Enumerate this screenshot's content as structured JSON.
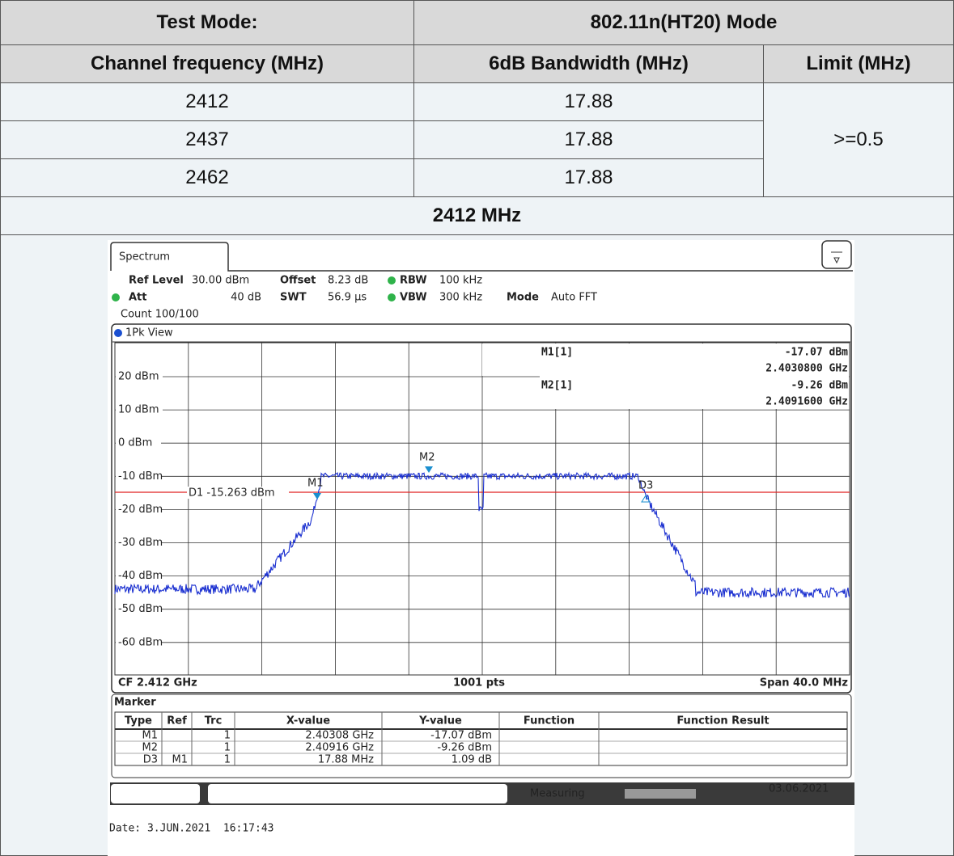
{
  "table": {
    "test_mode_label": "Test Mode:",
    "test_mode": "802.11n(HT20) Mode",
    "columns": [
      "Channel frequency (MHz)",
      "6dB Bandwidth (MHz)",
      "Limit (MHz)"
    ],
    "rows": [
      [
        "2412",
        "17.88"
      ],
      [
        "2437",
        "17.88"
      ],
      [
        "2462",
        "17.88"
      ]
    ],
    "limit": ">=0.5",
    "section": "2412 MHz"
  },
  "screenshot": {
    "tab": "Spectrum",
    "settings": {
      "ref_level_label": "Ref Level",
      "ref_level": "30.00 dBm",
      "offset_label": "Offset",
      "offset": "8.23 dB",
      "rbw_label": "RBW",
      "rbw": "100 kHz",
      "att_label": "Att",
      "att": "40 dB",
      "swt_label": "SWT",
      "swt": "56.9 µs",
      "vbw_label": "VBW",
      "vbw": "300 kHz",
      "mode_label": "Mode",
      "mode": "Auto FFT",
      "count": "Count 100/100"
    },
    "view": "1Pk View",
    "y_labels": [
      "20 dBm",
      "10 dBm",
      "0 dBm",
      "-10 dBm",
      "-20 dBm",
      "-30 dBm",
      "-40 dBm",
      "-50 dBm",
      "-60 dBm"
    ],
    "marker_info": [
      [
        "M1[1]",
        "-17.07 dBm",
        "2.4030800 GHz"
      ],
      [
        "M2[1]",
        "-9.26 dBm",
        "2.4091600 GHz"
      ]
    ],
    "display_line": "D1 -15.263 dBm",
    "marker_labels": [
      "M1",
      "M2",
      "D3"
    ],
    "footer": [
      "CF 2.412 GHz",
      "1001 pts",
      "Span 40.0 MHz"
    ],
    "marker_table": {
      "title": "Marker",
      "columns": [
        "Type",
        "Ref",
        "Trc",
        "X-value",
        "Y-value",
        "Function",
        "Function Result"
      ],
      "rows": [
        {
          "type": "M1",
          "trc": "1",
          "x": "2.40308 GHz",
          "y": "-17.07 dBm"
        },
        {
          "type": "M2",
          "trc": "1",
          "x": "2.40916 GHz",
          "y": "-9.26 dBm"
        },
        {
          "type": "D3",
          "ref": "M1",
          "trc": "1",
          "x": "17.88 MHz",
          "y": "1.09 dB"
        }
      ]
    },
    "status": "Measuring",
    "status_date": "03.06.2021",
    "date": "Date: 3.JUN.2021  16:17:43"
  }
}
